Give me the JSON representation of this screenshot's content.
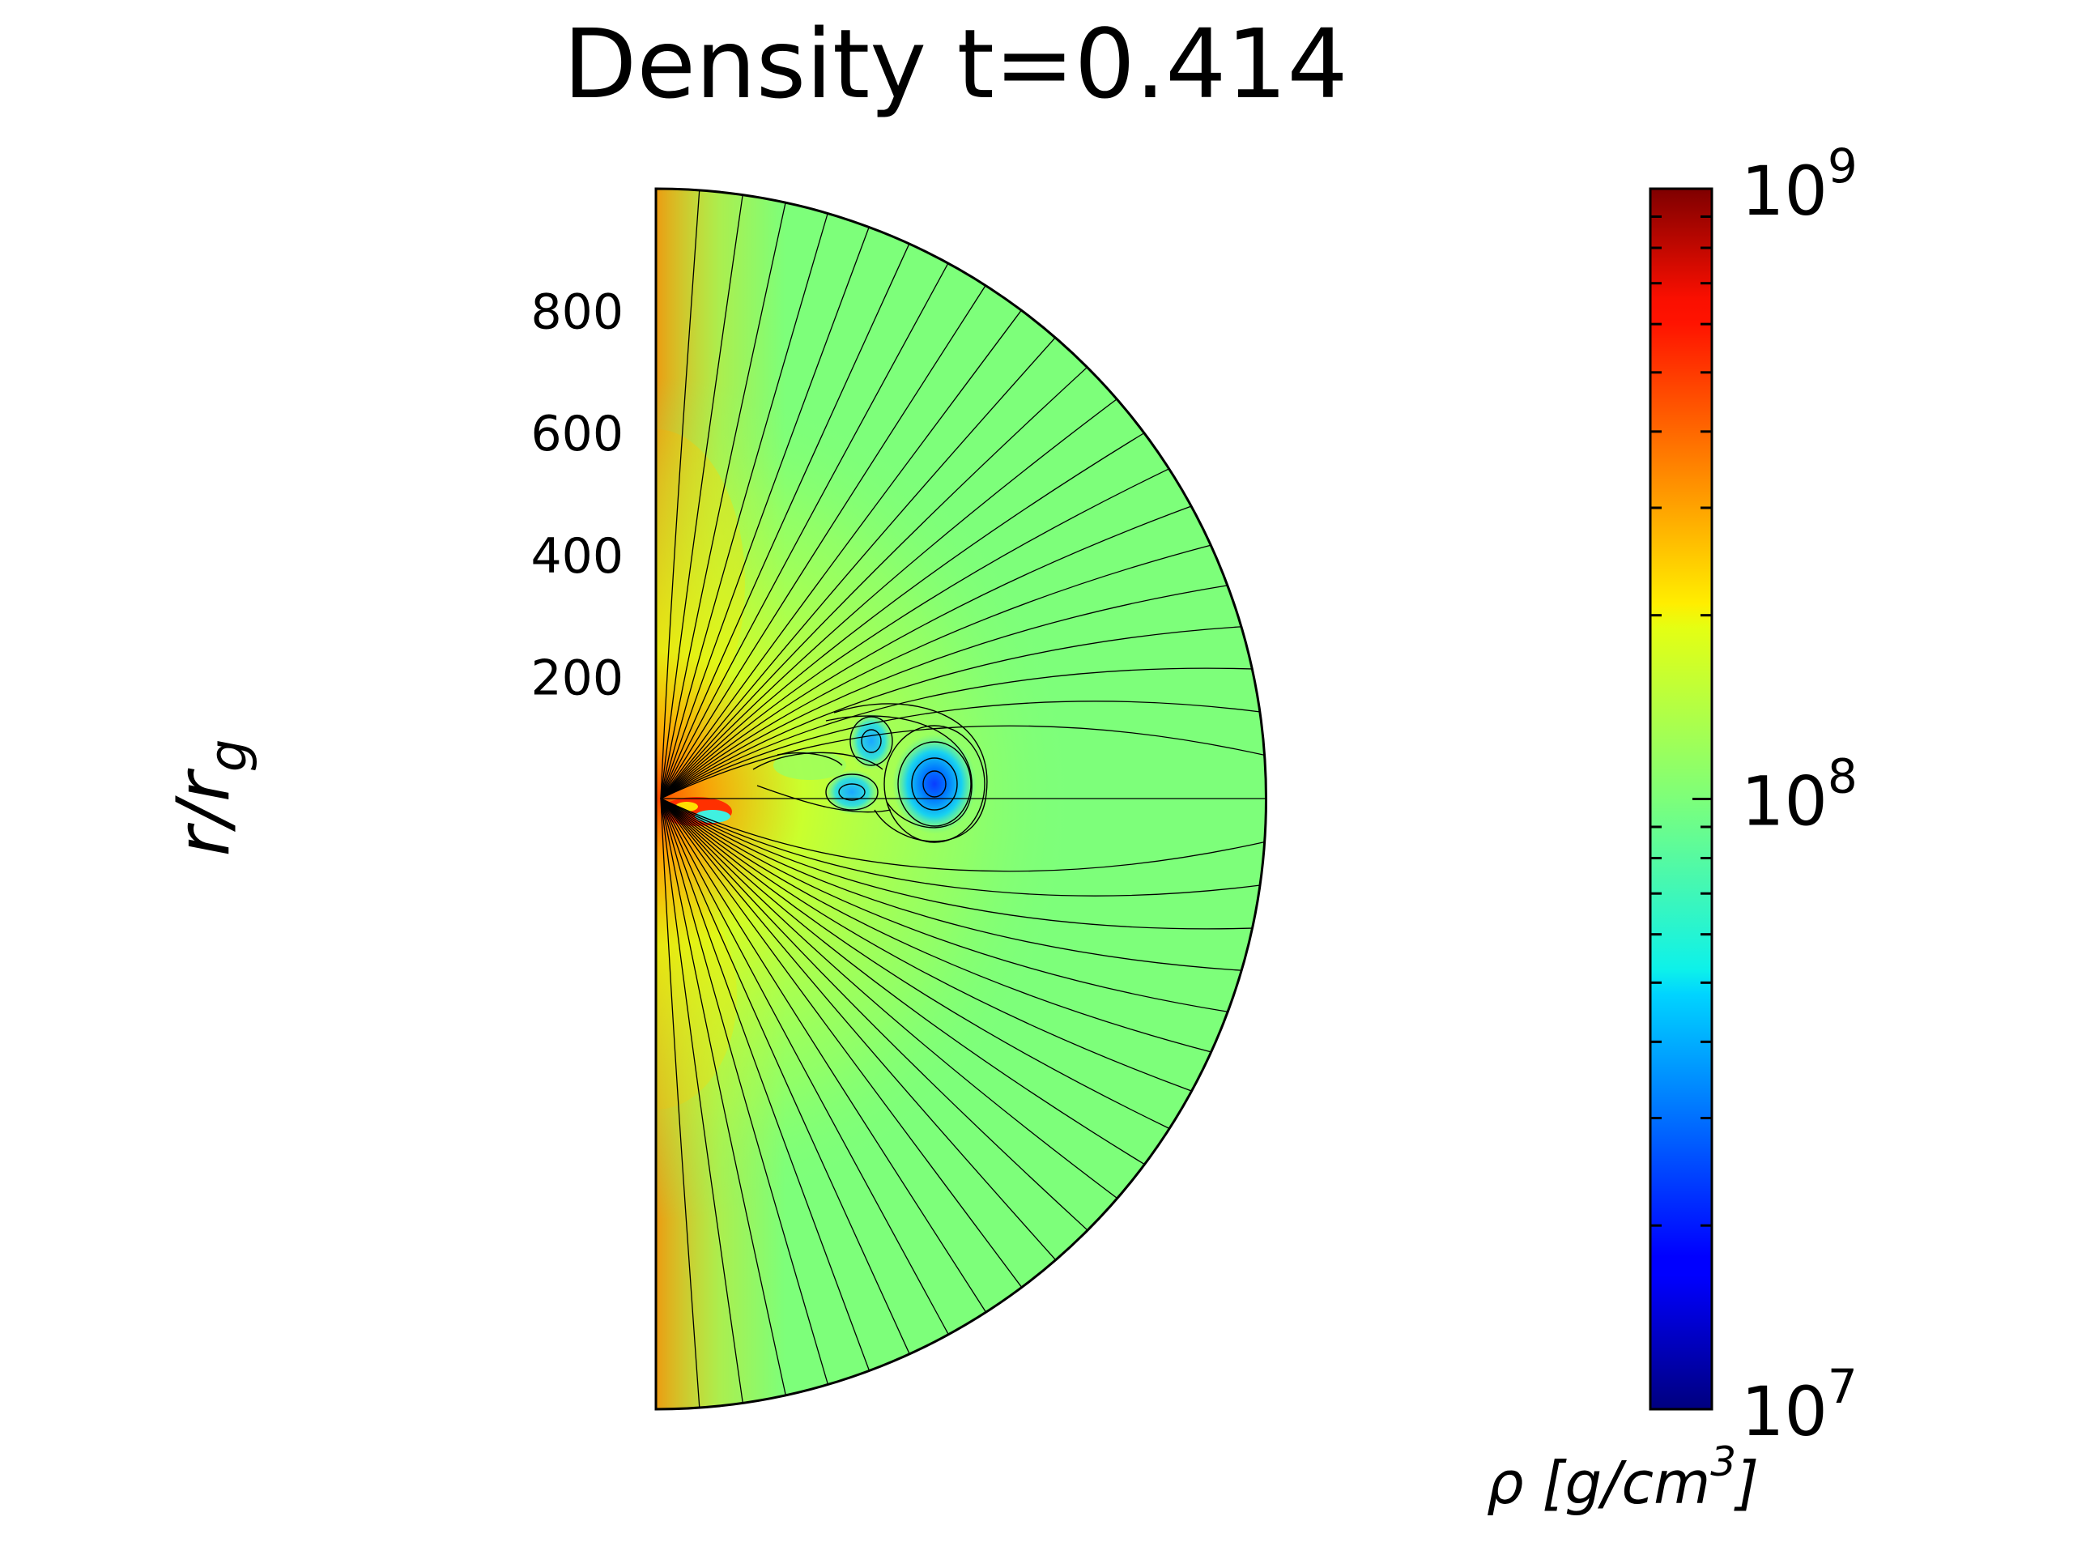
{
  "chart_data": {
    "type": "heatmap",
    "title": "Density t=0.414",
    "ylabel": "r/r_g",
    "ylabel_main": "r/r",
    "ylabel_sub": "g",
    "y_ticks": [
      200,
      400,
      600,
      800
    ],
    "r_range": [
      0,
      1000
    ],
    "theta_range_deg": [
      0,
      180
    ],
    "colorbar": {
      "colormap": "jet",
      "scale": "log",
      "range": [
        10000000,
        1000000000
      ],
      "tick_labels": [
        {
          "value": 10000000,
          "base": "10",
          "exp": "7"
        },
        {
          "value": 100000000,
          "base": "10",
          "exp": "8"
        },
        {
          "value": 1000000000,
          "base": "10",
          "exp": "9"
        }
      ],
      "label": "ρ [g/cm3]",
      "label_main": "ρ [g/cm",
      "label_sup": "3",
      "label_end": "]"
    },
    "features": [
      {
        "type": "low_density_vortex",
        "r": 340,
        "theta_deg": 90,
        "log10_rho": 7.4
      },
      {
        "type": "low_density_vortex",
        "r": 260,
        "theta_deg": 83,
        "log10_rho": 7.7
      },
      {
        "type": "low_density_vortex",
        "r": 240,
        "theta_deg": 92,
        "log10_rho": 7.75
      },
      {
        "type": "high_density_core",
        "r": 40,
        "theta_deg": 90,
        "log10_rho": 8.9
      }
    ],
    "background_log10_rho": 8.0,
    "polar_axis_log10_rho": 8.7,
    "grid": false
  }
}
